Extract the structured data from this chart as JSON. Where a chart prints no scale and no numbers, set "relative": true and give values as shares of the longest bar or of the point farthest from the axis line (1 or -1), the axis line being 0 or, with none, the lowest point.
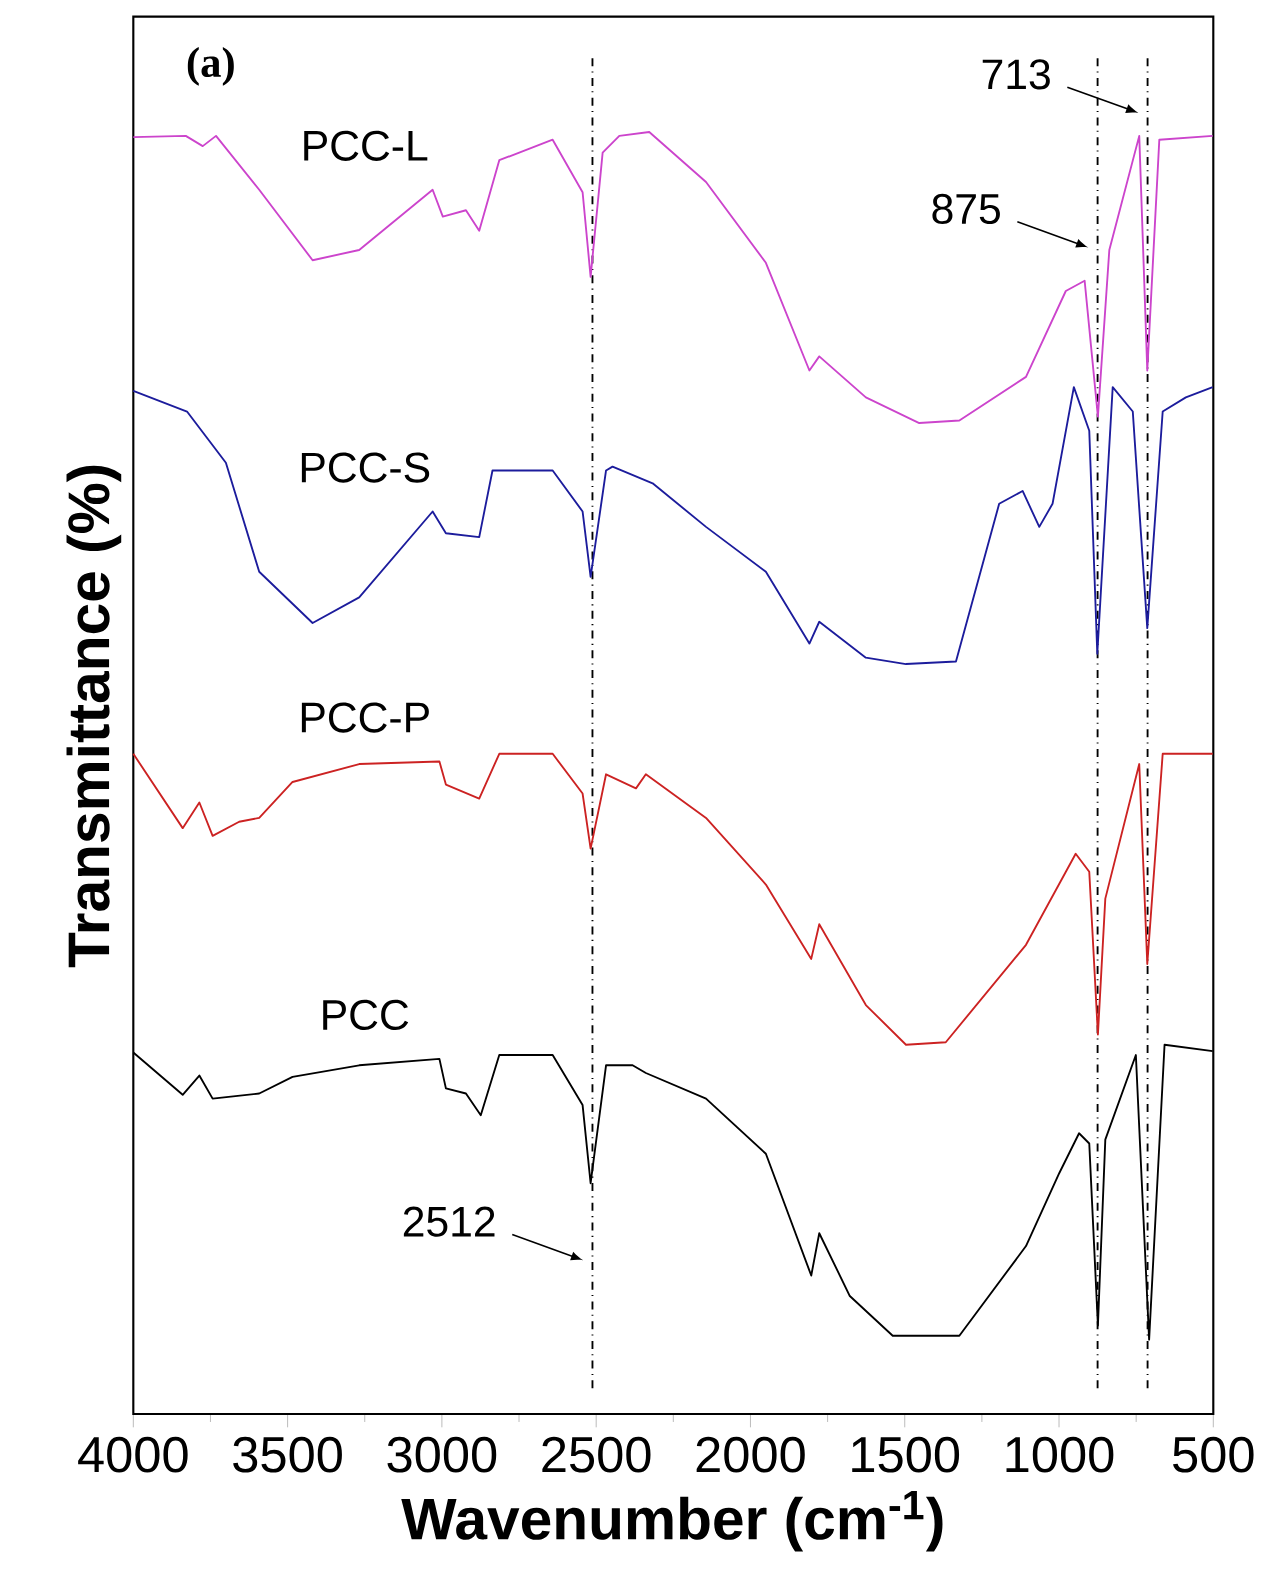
{
  "chart_data": {
    "type": "line",
    "xlabel": "Wavenumber (cm$^{-1}$)",
    "ylabel": "Transmittance (%)",
    "relative": true,
    "xlim": [
      4000,
      500
    ],
    "xticks": [
      4000,
      3500,
      3000,
      2500,
      2000,
      1500,
      1000,
      500
    ],
    "annotations": [
      "(a)"
    ],
    "ref_lines": [
      {
        "axis": "x",
        "value": 2512,
        "label": "2512",
        "line_style": "dashdot",
        "color": "#000000"
      },
      {
        "axis": "x",
        "value": 875,
        "label": "875",
        "line_style": "dashdot",
        "color": "#000000"
      },
      {
        "axis": "x",
        "value": 713,
        "label": "713",
        "line_style": "dashdot",
        "color": "#000000"
      }
    ],
    "series": [
      {
        "name": "PCC-L",
        "color": "#cc44cc",
        "x": [
          4000,
          3830,
          3775,
          3732,
          3592,
          3419,
          3268,
          3030,
          2997,
          2922,
          2879,
          2814,
          2641,
          2544,
          2518,
          2479,
          2425,
          2328,
          2144,
          1950,
          1809,
          1777,
          1626,
          1453,
          1323,
          1107,
          978,
          917,
          874,
          837,
          740,
          714,
          675,
          502
        ],
        "values": [
          0.996,
          0.997,
          0.989,
          0.997,
          0.955,
          0.9,
          0.908,
          0.955,
          0.934,
          0.939,
          0.923,
          0.978,
          0.994,
          0.953,
          0.887,
          0.984,
          0.997,
          1.0,
          0.961,
          0.898,
          0.814,
          0.825,
          0.793,
          0.773,
          0.775,
          0.809,
          0.876,
          0.884,
          0.778,
          0.908,
          0.997,
          0.814,
          0.994,
          0.997
        ]
      },
      {
        "name": "PCC-S",
        "color": "#1c1c9c",
        "x": [
          4000,
          3826,
          3700,
          3592,
          3419,
          3268,
          3030,
          2987,
          2879,
          2836,
          2641,
          2544,
          2518,
          2468,
          2447,
          2317,
          2144,
          1950,
          1809,
          1777,
          1626,
          1496,
          1334,
          1194,
          1118,
          1064,
          1021,
          952,
          902,
          876,
          826,
          761,
          714,
          664,
          589,
          502
        ],
        "values": [
          0.798,
          0.782,
          0.742,
          0.657,
          0.617,
          0.637,
          0.704,
          0.687,
          0.684,
          0.736,
          0.736,
          0.704,
          0.653,
          0.736,
          0.739,
          0.726,
          0.692,
          0.657,
          0.601,
          0.618,
          0.59,
          0.585,
          0.587,
          0.71,
          0.72,
          0.692,
          0.71,
          0.801,
          0.767,
          0.593,
          0.801,
          0.782,
          0.613,
          0.782,
          0.793,
          0.801
        ]
      },
      {
        "name": "PCC-P",
        "color": "#cc2222",
        "x": [
          4000,
          3840,
          3786,
          3743,
          3657,
          3592,
          3484,
          3268,
          3008,
          2987,
          2879,
          2814,
          2641,
          2544,
          2518,
          2468,
          2371,
          2339,
          2144,
          1950,
          1803,
          1777,
          1626,
          1496,
          1367,
          1107,
          946,
          902,
          874,
          850,
          740,
          714,
          664,
          502
        ],
        "values": [
          0.515,
          0.457,
          0.477,
          0.451,
          0.462,
          0.465,
          0.493,
          0.507,
          0.509,
          0.491,
          0.48,
          0.515,
          0.515,
          0.484,
          0.441,
          0.499,
          0.488,
          0.499,
          0.465,
          0.413,
          0.355,
          0.382,
          0.319,
          0.288,
          0.29,
          0.366,
          0.437,
          0.423,
          0.296,
          0.402,
          0.507,
          0.351,
          0.515,
          0.515
        ]
      },
      {
        "name": "PCC",
        "color": "#000000",
        "x": [
          4000,
          3840,
          3786,
          3743,
          3592,
          3484,
          3268,
          3008,
          2987,
          2922,
          2874,
          2814,
          2641,
          2544,
          2518,
          2468,
          2382,
          2339,
          2144,
          1950,
          1803,
          1777,
          1678,
          1539,
          1323,
          1107,
          999,
          935,
          902,
          874,
          850,
          751,
          708,
          658,
          502
        ],
        "values": [
          0.282,
          0.249,
          0.264,
          0.246,
          0.25,
          0.263,
          0.272,
          0.277,
          0.254,
          0.25,
          0.233,
          0.28,
          0.28,
          0.241,
          0.18,
          0.272,
          0.272,
          0.266,
          0.246,
          0.203,
          0.108,
          0.141,
          0.092,
          0.061,
          0.061,
          0.131,
          0.188,
          0.219,
          0.211,
          0.069,
          0.214,
          0.28,
          0.058,
          0.288,
          0.283
        ]
      }
    ]
  }
}
